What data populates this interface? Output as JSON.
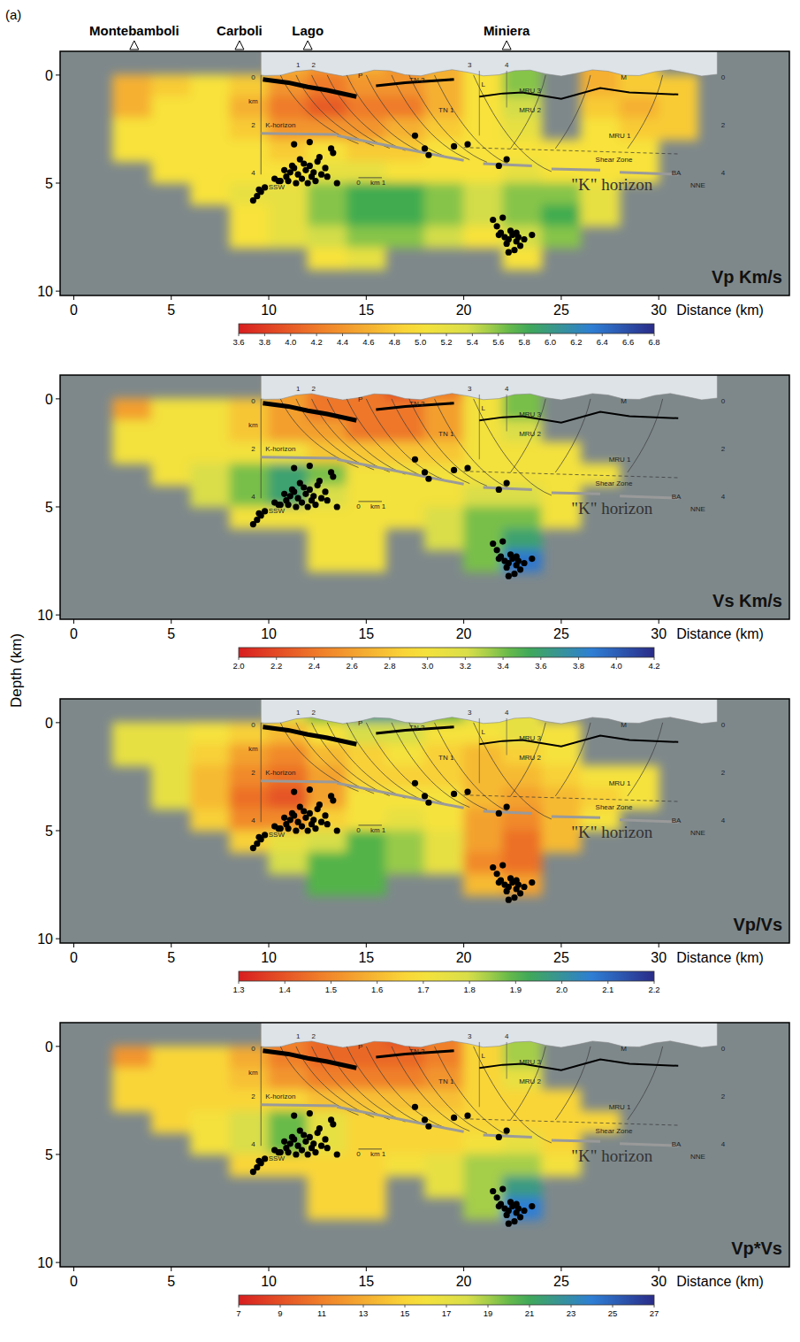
{
  "panel_label": "(a)",
  "y_label": "Depth (km)",
  "hypocenters": {
    "x": [
      9.2,
      9.4,
      9.6,
      9.8,
      9.5,
      10.3,
      10.6,
      10.9,
      11.1,
      11.3,
      11.5,
      11.7,
      11.9,
      12.1,
      12.3,
      12.5,
      12.7,
      12.9,
      11.0,
      11.4,
      11.8,
      12.2,
      12.6,
      10.8,
      11.6,
      12.4,
      13.0,
      13.3,
      12.0,
      11.2,
      10.5,
      13.5,
      21.5,
      21.7,
      21.9,
      22.1,
      22.3,
      22.5,
      22.7,
      22.9,
      23.1,
      22.0,
      22.4,
      22.8,
      22.6,
      22.2,
      23.5,
      21.8,
      22.3,
      22.7,
      11.3,
      12.1,
      13.2,
      17.5,
      18.0,
      18.2,
      19.5,
      20.2,
      21.8,
      22.2
    ],
    "depth": [
      5.8,
      5.6,
      5.4,
      5.2,
      5.3,
      4.8,
      4.9,
      4.7,
      4.5,
      4.3,
      4.6,
      4.8,
      4.4,
      4.2,
      4.5,
      4.0,
      4.6,
      4.3,
      4.9,
      5.0,
      4.1,
      4.7,
      3.8,
      4.4,
      3.9,
      4.9,
      4.7,
      3.6,
      5.0,
      4.2,
      4.9,
      5.0,
      6.7,
      7.0,
      7.3,
      7.5,
      7.6,
      7.4,
      7.7,
      7.9,
      7.6,
      6.6,
      7.2,
      7.5,
      8.1,
      7.8,
      7.4,
      7.4,
      8.2,
      7.3,
      3.2,
      3.1,
      3.4,
      2.8,
      3.4,
      3.7,
      3.3,
      3.2,
      4.2,
      3.9
    ]
  },
  "section_labels": [
    {
      "text": "TN 2",
      "x": 17.6,
      "depth": 0.2
    },
    {
      "text": "TN 1",
      "x": 19.1,
      "depth": 1.6
    },
    {
      "text": "P",
      "x": 14.7,
      "depth": 0.0
    },
    {
      "text": "L",
      "x": 21.0,
      "depth": 0.4
    },
    {
      "text": "MRU 3",
      "x": 23.4,
      "depth": 0.7
    },
    {
      "text": "MRU 2",
      "x": 23.4,
      "depth": 1.6
    },
    {
      "text": "MRU 1",
      "x": 28.0,
      "depth": 2.8
    },
    {
      "text": "M",
      "x": 28.2,
      "depth": 0.1
    },
    {
      "text": "BA",
      "x": 30.9,
      "depth": 4.5
    },
    {
      "text": "Shear Zone",
      "x": 27.7,
      "depth": 3.9
    },
    {
      "text": "K-horizon",
      "x": 10.6,
      "depth": 2.3
    },
    {
      "text": "SSW",
      "x": 10.4,
      "depth": 5.15
    },
    {
      "text": "NNE",
      "x": 32.0,
      "depth": 5.1
    },
    {
      "text": "0",
      "x": 14.6,
      "depth": 4.95
    },
    {
      "text": "km 1",
      "x": 15.6,
      "depth": 4.95
    },
    {
      "text": "km",
      "x": 9.2,
      "depth": 1.2
    },
    {
      "text": "0",
      "x": 9.2,
      "depth": 0.1
    },
    {
      "text": "2",
      "x": 9.2,
      "depth": 2.3
    },
    {
      "text": "4",
      "x": 9.2,
      "depth": 4.5
    },
    {
      "text": "0",
      "x": 33.3,
      "depth": 0.1
    },
    {
      "text": "2",
      "x": 33.3,
      "depth": 2.3
    },
    {
      "text": "4",
      "x": 33.3,
      "depth": 4.5
    },
    {
      "text": "1",
      "x": 11.5,
      "depth": -0.5
    },
    {
      "text": "2",
      "x": 12.3,
      "depth": -0.5
    },
    {
      "text": "3",
      "x": 20.3,
      "depth": -0.5
    },
    {
      "text": "4",
      "x": 22.2,
      "depth": -0.5
    }
  ],
  "k_horizon_label": {
    "text": "\"K\" horizon",
    "x": 27.6,
    "depth": 5.1
  },
  "chart_data": [
    {
      "type": "heatmap",
      "title": "Vp Km/s",
      "x_label": "Distance (km)",
      "xlim": [
        -0.7,
        36.7
      ],
      "ylim": [
        -1.1,
        10.2
      ],
      "xticks": [
        0,
        5,
        10,
        15,
        20,
        25,
        30
      ],
      "yticks": [
        0,
        5,
        10
      ],
      "stations": [
        {
          "name": "Montebamboli",
          "x": 3.1
        },
        {
          "name": "Carboli",
          "x": 8.5
        },
        {
          "name": "Lago",
          "x": 12.0
        },
        {
          "name": "Miniera",
          "x": 22.2
        }
      ],
      "x_edges": [
        2,
        4,
        6,
        8,
        10,
        12,
        14,
        16,
        18,
        20,
        22,
        24,
        26,
        28,
        30,
        32
      ],
      "z_edges": [
        -1,
        0,
        1,
        2,
        3,
        4,
        5,
        6,
        7,
        8,
        9
      ],
      "cells": [
        [
          null,
          null,
          null,
          null,
          4.6,
          4.4,
          4.6,
          4.4,
          4.6,
          5.0,
          5.6,
          null,
          4.6,
          4.8,
          null
        ],
        [
          4.6,
          4.8,
          5.0,
          4.8,
          4.4,
          4.2,
          4.4,
          4.4,
          4.6,
          5.0,
          5.6,
          null,
          4.6,
          4.8,
          4.8
        ],
        [
          4.6,
          5.0,
          5.0,
          4.6,
          4.2,
          4.0,
          4.2,
          4.2,
          4.6,
          5.0,
          5.4,
          null,
          4.8,
          4.6,
          4.8
        ],
        [
          5.0,
          5.0,
          5.0,
          4.8,
          4.4,
          4.4,
          4.4,
          4.6,
          4.8,
          5.0,
          5.2,
          null,
          5.0,
          4.8,
          4.8
        ],
        [
          5.0,
          5.0,
          5.0,
          5.0,
          4.8,
          5.0,
          4.8,
          4.8,
          5.0,
          5.0,
          5.0,
          5.0,
          5.0,
          5.0,
          null
        ],
        [
          null,
          5.0,
          5.0,
          5.0,
          5.0,
          5.2,
          5.2,
          5.0,
          5.0,
          5.0,
          5.2,
          5.0,
          5.0,
          5.0,
          null
        ],
        [
          null,
          null,
          5.0,
          5.2,
          5.2,
          5.6,
          5.8,
          5.8,
          5.6,
          5.4,
          5.6,
          5.6,
          5.2,
          null,
          null
        ],
        [
          null,
          null,
          null,
          5.0,
          5.2,
          5.6,
          5.8,
          5.8,
          5.6,
          5.4,
          5.6,
          5.8,
          5.2,
          null,
          null
        ],
        [
          null,
          null,
          null,
          5.0,
          5.2,
          5.4,
          5.6,
          5.6,
          5.4,
          5.0,
          5.4,
          5.6,
          null,
          null,
          null
        ],
        [
          null,
          null,
          null,
          null,
          null,
          5.0,
          5.2,
          null,
          null,
          null,
          5.0,
          null,
          null,
          null,
          null
        ]
      ],
      "colorbar": {
        "range": [
          3.6,
          6.8
        ],
        "ticks": [
          3.6,
          3.8,
          {
            "value": 4,
            "label": "4.0"
          },
          4.2,
          4.4,
          4.6,
          4.8,
          {
            "value": 5,
            "label": "5.0"
          },
          5.2,
          5.4,
          5.6,
          5.8,
          {
            "value": 6,
            "label": "6.0"
          },
          6.2,
          6.4,
          6.6,
          6.8
        ]
      }
    },
    {
      "type": "heatmap",
      "title": "Vs Km/s",
      "x_label": "Distance (km)",
      "xlim": [
        -0.7,
        36.7
      ],
      "ylim": [
        -1.1,
        10.2
      ],
      "xticks": [
        0,
        5,
        10,
        15,
        20,
        25,
        30
      ],
      "yticks": [
        0,
        5,
        10
      ],
      "x_edges": [
        2,
        4,
        6,
        8,
        10,
        12,
        14,
        16,
        18,
        20,
        22,
        24,
        26,
        28,
        30,
        32
      ],
      "z_edges": [
        -1,
        0,
        1,
        2,
        3,
        4,
        5,
        6,
        7,
        8,
        9
      ],
      "cells": [
        [
          null,
          null,
          null,
          null,
          2.6,
          2.4,
          2.4,
          2.2,
          2.4,
          3.0,
          3.4,
          null,
          null,
          null,
          null
        ],
        [
          2.6,
          3.0,
          3.0,
          2.8,
          2.6,
          2.4,
          2.4,
          2.4,
          2.6,
          3.0,
          3.4,
          null,
          null,
          null,
          null
        ],
        [
          3.0,
          3.0,
          3.0,
          2.8,
          2.6,
          2.6,
          2.4,
          2.4,
          2.6,
          3.0,
          3.2,
          null,
          null,
          null,
          null
        ],
        [
          3.0,
          3.0,
          3.0,
          3.0,
          3.0,
          2.8,
          2.8,
          2.8,
          2.8,
          3.0,
          3.0,
          3.0,
          null,
          null,
          null
        ],
        [
          null,
          3.0,
          3.2,
          3.4,
          3.6,
          3.4,
          3.0,
          3.0,
          3.0,
          3.0,
          3.0,
          3.0,
          3.0,
          null,
          null
        ],
        [
          null,
          null,
          3.2,
          3.4,
          3.6,
          3.2,
          3.0,
          3.0,
          3.0,
          3.2,
          3.2,
          3.0,
          null,
          null,
          null
        ],
        [
          null,
          null,
          null,
          3.0,
          3.0,
          3.0,
          3.0,
          3.0,
          3.2,
          3.4,
          3.4,
          3.0,
          null,
          null,
          null
        ],
        [
          null,
          null,
          null,
          null,
          null,
          3.0,
          3.0,
          null,
          3.2,
          3.4,
          3.6,
          null,
          null,
          null,
          null
        ],
        [
          null,
          null,
          null,
          null,
          null,
          3.0,
          3.0,
          null,
          null,
          3.4,
          3.9,
          null,
          null,
          null,
          null
        ],
        [
          null,
          null,
          null,
          null,
          null,
          null,
          null,
          null,
          null,
          null,
          null,
          null,
          null,
          null,
          null
        ]
      ],
      "colorbar": {
        "range": [
          2.0,
          4.2
        ],
        "ticks": [
          {
            "value": 2,
            "label": "2.0"
          },
          2.2,
          2.4,
          2.6,
          2.8,
          {
            "value": 3,
            "label": "3.0"
          },
          3.2,
          3.4,
          3.6,
          3.8,
          {
            "value": 4,
            "label": "4.0"
          },
          4.2
        ]
      }
    },
    {
      "type": "heatmap",
      "title": "Vp/Vs",
      "x_label": "Distance (km)",
      "xlim": [
        -0.7,
        36.7
      ],
      "ylim": [
        -1.1,
        10.2
      ],
      "xticks": [
        0,
        5,
        10,
        15,
        20,
        25,
        30
      ],
      "yticks": [
        0,
        5,
        10
      ],
      "x_edges": [
        2,
        4,
        6,
        8,
        10,
        12,
        14,
        16,
        18,
        20,
        22,
        24,
        26,
        28,
        30,
        32
      ],
      "z_edges": [
        -1,
        0,
        1,
        2,
        3,
        4,
        5,
        6,
        7,
        8,
        9
      ],
      "cells": [
        [
          null,
          null,
          null,
          null,
          1.8,
          1.9,
          2.0,
          2.0,
          1.9,
          1.8,
          1.75,
          null,
          null,
          null,
          null
        ],
        [
          1.75,
          1.75,
          1.7,
          1.65,
          1.6,
          1.7,
          1.8,
          1.8,
          1.7,
          1.7,
          1.75,
          1.7,
          null,
          null,
          null
        ],
        [
          1.75,
          1.75,
          1.65,
          1.55,
          1.5,
          1.6,
          1.65,
          1.7,
          1.65,
          1.6,
          1.65,
          1.7,
          null,
          null,
          null
        ],
        [
          null,
          1.75,
          1.6,
          1.5,
          1.45,
          1.55,
          1.65,
          1.65,
          1.65,
          1.6,
          1.6,
          1.65,
          1.7,
          1.7,
          null
        ],
        [
          null,
          1.75,
          1.6,
          1.45,
          1.4,
          1.55,
          1.7,
          1.7,
          1.7,
          1.6,
          1.55,
          1.6,
          1.65,
          1.7,
          null
        ],
        [
          null,
          null,
          1.65,
          1.5,
          1.5,
          1.65,
          1.7,
          1.75,
          1.7,
          1.55,
          1.5,
          1.6,
          1.7,
          null,
          null
        ],
        [
          null,
          null,
          null,
          1.65,
          1.75,
          1.8,
          1.9,
          1.85,
          1.75,
          1.55,
          1.45,
          1.6,
          null,
          null,
          null
        ],
        [
          null,
          null,
          null,
          null,
          1.8,
          1.9,
          1.9,
          1.85,
          1.75,
          1.5,
          1.45,
          null,
          null,
          null,
          null
        ],
        [
          null,
          null,
          null,
          null,
          null,
          1.9,
          1.9,
          null,
          null,
          1.6,
          1.55,
          null,
          null,
          null,
          null
        ],
        [
          null,
          null,
          null,
          null,
          null,
          null,
          null,
          null,
          null,
          null,
          null,
          null,
          null,
          null,
          null
        ]
      ],
      "colorbar": {
        "range": [
          1.3,
          2.2
        ],
        "ticks": [
          1.3,
          1.4,
          1.5,
          1.6,
          1.7,
          1.8,
          1.9,
          {
            "value": 2,
            "label": "2.0"
          },
          2.1,
          2.2
        ]
      }
    },
    {
      "type": "heatmap",
      "title": "Vp*Vs",
      "x_label": "Distance (km)",
      "xlim": [
        -0.7,
        36.7
      ],
      "ylim": [
        -1.1,
        10.2
      ],
      "xticks": [
        0,
        5,
        10,
        15,
        20,
        25,
        30
      ],
      "yticks": [
        0,
        5,
        10
      ],
      "x_edges": [
        2,
        4,
        6,
        8,
        10,
        12,
        14,
        16,
        18,
        20,
        22,
        24,
        26,
        28,
        30,
        32
      ],
      "z_edges": [
        -1,
        0,
        1,
        2,
        3,
        4,
        5,
        6,
        7,
        8,
        9
      ],
      "cells": [
        [
          null,
          null,
          null,
          null,
          11,
          10,
          10,
          9,
          11,
          15,
          19,
          null,
          null,
          null,
          null
        ],
        [
          12,
          15,
          15,
          13,
          11,
          10,
          10,
          10,
          11,
          15,
          19,
          null,
          null,
          null,
          null
        ],
        [
          15,
          15,
          15,
          14,
          12,
          11,
          11,
          11,
          12,
          15,
          17,
          null,
          null,
          null,
          null
        ],
        [
          15,
          15,
          15,
          15,
          15,
          14,
          14,
          14,
          14,
          15,
          15,
          15,
          null,
          null,
          null
        ],
        [
          null,
          15,
          16,
          18,
          20,
          17,
          15,
          15,
          15,
          15,
          15,
          15,
          15,
          null,
          null
        ],
        [
          null,
          null,
          16,
          18,
          20,
          17,
          15,
          15,
          15,
          16,
          17,
          15,
          null,
          null,
          null
        ],
        [
          null,
          null,
          null,
          15,
          15,
          15,
          15,
          16,
          17,
          19,
          19,
          16,
          null,
          null,
          null
        ],
        [
          null,
          null,
          null,
          null,
          null,
          15,
          15,
          null,
          17,
          19,
          22,
          null,
          null,
          null,
          null
        ],
        [
          null,
          null,
          null,
          null,
          null,
          15,
          15,
          null,
          null,
          19,
          24,
          null,
          null,
          null,
          null
        ],
        [
          null,
          null,
          null,
          null,
          null,
          null,
          null,
          null,
          null,
          null,
          null,
          null,
          null,
          null,
          null
        ]
      ],
      "colorbar": {
        "range": [
          7,
          27
        ],
        "ticks": [
          7,
          9,
          11,
          13,
          15,
          17,
          19,
          21,
          23,
          25,
          27
        ]
      }
    }
  ]
}
